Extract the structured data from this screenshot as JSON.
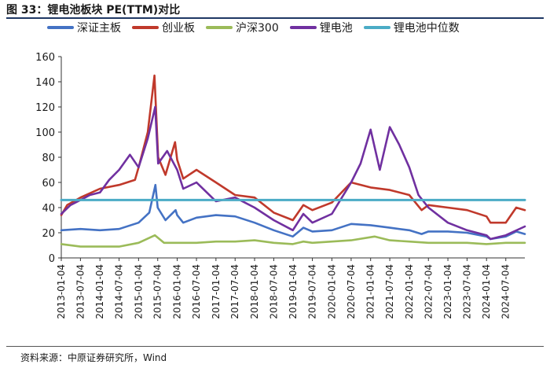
{
  "header": {
    "title": "图 33：锂电池板块 PE(TTM)对比"
  },
  "footer": {
    "source": "资料来源：中原证券研究所，Wind"
  },
  "chart_data": {
    "type": "line",
    "title": "图 33：锂电池板块 PE(TTM)对比",
    "xlabel": "",
    "ylabel": "",
    "ylim": [
      0,
      160
    ],
    "yticks": [
      0,
      20,
      40,
      60,
      80,
      100,
      120,
      140,
      160
    ],
    "xlim": [
      "2013-01-04",
      "2024-12-31"
    ],
    "xticks": [
      "2013-01-04",
      "2013-07-04",
      "2014-01-04",
      "2014-07-04",
      "2015-01-04",
      "2015-07-04",
      "2016-01-04",
      "2016-07-04",
      "2017-01-04",
      "2017-07-04",
      "2018-01-04",
      "2018-07-04",
      "2019-01-04",
      "2019-07-04",
      "2020-01-04",
      "2020-07-04",
      "2021-01-04",
      "2021-07-04",
      "2022-01-04",
      "2022-07-04",
      "2023-01-04",
      "2023-07-04",
      "2024-01-04",
      "2024-07-04"
    ],
    "legend_position": "top",
    "grid": false,
    "series": [
      {
        "name": "深证主板",
        "color": "#4472c4",
        "points": [
          [
            "2013-01-04",
            22
          ],
          [
            "2013-07-04",
            23
          ],
          [
            "2014-01-04",
            22
          ],
          [
            "2014-07-04",
            23
          ],
          [
            "2015-01-04",
            28
          ],
          [
            "2015-04-15",
            36
          ],
          [
            "2015-06-12",
            58
          ],
          [
            "2015-07-04",
            40
          ],
          [
            "2015-09-15",
            30
          ],
          [
            "2015-12-20",
            38
          ],
          [
            "2016-01-04",
            34
          ],
          [
            "2016-03-01",
            28
          ],
          [
            "2016-07-04",
            32
          ],
          [
            "2017-01-04",
            34
          ],
          [
            "2017-07-04",
            33
          ],
          [
            "2018-01-04",
            28
          ],
          [
            "2018-07-04",
            22
          ],
          [
            "2018-12-31",
            17
          ],
          [
            "2019-04-10",
            24
          ],
          [
            "2019-07-04",
            21
          ],
          [
            "2020-01-04",
            22
          ],
          [
            "2020-07-04",
            27
          ],
          [
            "2021-01-04",
            26
          ],
          [
            "2021-07-04",
            24
          ],
          [
            "2022-01-04",
            22
          ],
          [
            "2022-05-01",
            19
          ],
          [
            "2022-07-04",
            21
          ],
          [
            "2023-01-04",
            21
          ],
          [
            "2023-07-04",
            20
          ],
          [
            "2024-01-04",
            17
          ],
          [
            "2024-02-10",
            15
          ],
          [
            "2024-07-04",
            17
          ],
          [
            "2024-10-10",
            21
          ],
          [
            "2024-12-31",
            19
          ]
        ]
      },
      {
        "name": "创业板",
        "color": "#c0392b",
        "points": [
          [
            "2013-01-04",
            34
          ],
          [
            "2013-03-01",
            42
          ],
          [
            "2013-07-04",
            48
          ],
          [
            "2014-01-04",
            55
          ],
          [
            "2014-07-04",
            58
          ],
          [
            "2014-12-01",
            62
          ],
          [
            "2015-01-04",
            72
          ],
          [
            "2015-04-01",
            100
          ],
          [
            "2015-06-03",
            145
          ],
          [
            "2015-07-08",
            80
          ],
          [
            "2015-09-15",
            66
          ],
          [
            "2015-12-15",
            92
          ],
          [
            "2016-01-04",
            78
          ],
          [
            "2016-03-01",
            63
          ],
          [
            "2016-07-04",
            70
          ],
          [
            "2017-01-04",
            60
          ],
          [
            "2017-07-04",
            50
          ],
          [
            "2018-01-04",
            48
          ],
          [
            "2018-07-04",
            36
          ],
          [
            "2018-12-31",
            30
          ],
          [
            "2019-04-10",
            42
          ],
          [
            "2019-07-04",
            38
          ],
          [
            "2020-01-04",
            44
          ],
          [
            "2020-07-04",
            60
          ],
          [
            "2021-01-04",
            56
          ],
          [
            "2021-07-04",
            54
          ],
          [
            "2022-01-04",
            50
          ],
          [
            "2022-05-01",
            38
          ],
          [
            "2022-07-04",
            42
          ],
          [
            "2023-01-04",
            40
          ],
          [
            "2023-07-04",
            38
          ],
          [
            "2024-01-04",
            33
          ],
          [
            "2024-02-10",
            28
          ],
          [
            "2024-07-04",
            28
          ],
          [
            "2024-10-10",
            40
          ],
          [
            "2024-12-31",
            38
          ]
        ]
      },
      {
        "name": "沪深300",
        "color": "#9bbb59",
        "points": [
          [
            "2013-01-04",
            11
          ],
          [
            "2013-07-04",
            9
          ],
          [
            "2014-01-04",
            9
          ],
          [
            "2014-07-04",
            9
          ],
          [
            "2015-01-04",
            12
          ],
          [
            "2015-06-08",
            18
          ],
          [
            "2015-09-01",
            12
          ],
          [
            "2016-01-04",
            12
          ],
          [
            "2016-07-04",
            12
          ],
          [
            "2017-01-04",
            13
          ],
          [
            "2017-07-04",
            13
          ],
          [
            "2018-01-04",
            14
          ],
          [
            "2018-07-04",
            12
          ],
          [
            "2018-12-31",
            11
          ],
          [
            "2019-04-10",
            13
          ],
          [
            "2019-07-04",
            12
          ],
          [
            "2020-01-04",
            13
          ],
          [
            "2020-07-04",
            14
          ],
          [
            "2021-02-10",
            17
          ],
          [
            "2021-07-04",
            14
          ],
          [
            "2022-01-04",
            13
          ],
          [
            "2022-07-04",
            12
          ],
          [
            "2023-01-04",
            12
          ],
          [
            "2023-07-04",
            12
          ],
          [
            "2024-01-04",
            11
          ],
          [
            "2024-07-04",
            12
          ],
          [
            "2024-12-31",
            12
          ]
        ]
      },
      {
        "name": "锂电池",
        "color": "#7030a0",
        "points": [
          [
            "2013-01-04",
            35
          ],
          [
            "2013-04-01",
            42
          ],
          [
            "2013-07-04",
            46
          ],
          [
            "2013-10-01",
            50
          ],
          [
            "2014-01-04",
            52
          ],
          [
            "2014-04-01",
            62
          ],
          [
            "2014-07-04",
            70
          ],
          [
            "2014-10-15",
            82
          ],
          [
            "2015-01-04",
            72
          ],
          [
            "2015-04-01",
            95
          ],
          [
            "2015-06-10",
            120
          ],
          [
            "2015-07-08",
            75
          ],
          [
            "2015-10-01",
            85
          ],
          [
            "2016-01-04",
            70
          ],
          [
            "2016-03-01",
            55
          ],
          [
            "2016-07-04",
            60
          ],
          [
            "2017-01-04",
            45
          ],
          [
            "2017-07-04",
            48
          ],
          [
            "2018-01-04",
            40
          ],
          [
            "2018-07-04",
            30
          ],
          [
            "2018-12-31",
            22
          ],
          [
            "2019-04-10",
            35
          ],
          [
            "2019-07-04",
            28
          ],
          [
            "2020-01-04",
            35
          ],
          [
            "2020-07-04",
            60
          ],
          [
            "2020-10-01",
            75
          ],
          [
            "2021-01-04",
            102
          ],
          [
            "2021-04-01",
            70
          ],
          [
            "2021-07-04",
            104
          ],
          [
            "2021-10-01",
            90
          ],
          [
            "2022-01-04",
            72
          ],
          [
            "2022-04-01",
            50
          ],
          [
            "2022-07-04",
            40
          ],
          [
            "2023-01-04",
            28
          ],
          [
            "2023-07-04",
            22
          ],
          [
            "2024-01-04",
            18
          ],
          [
            "2024-02-10",
            15
          ],
          [
            "2024-07-04",
            18
          ],
          [
            "2024-12-31",
            25
          ]
        ]
      },
      {
        "name": "锂电池中位数",
        "color": "#4bacc6",
        "points": [
          [
            "2013-01-04",
            46
          ],
          [
            "2024-12-31",
            46
          ]
        ]
      }
    ]
  }
}
